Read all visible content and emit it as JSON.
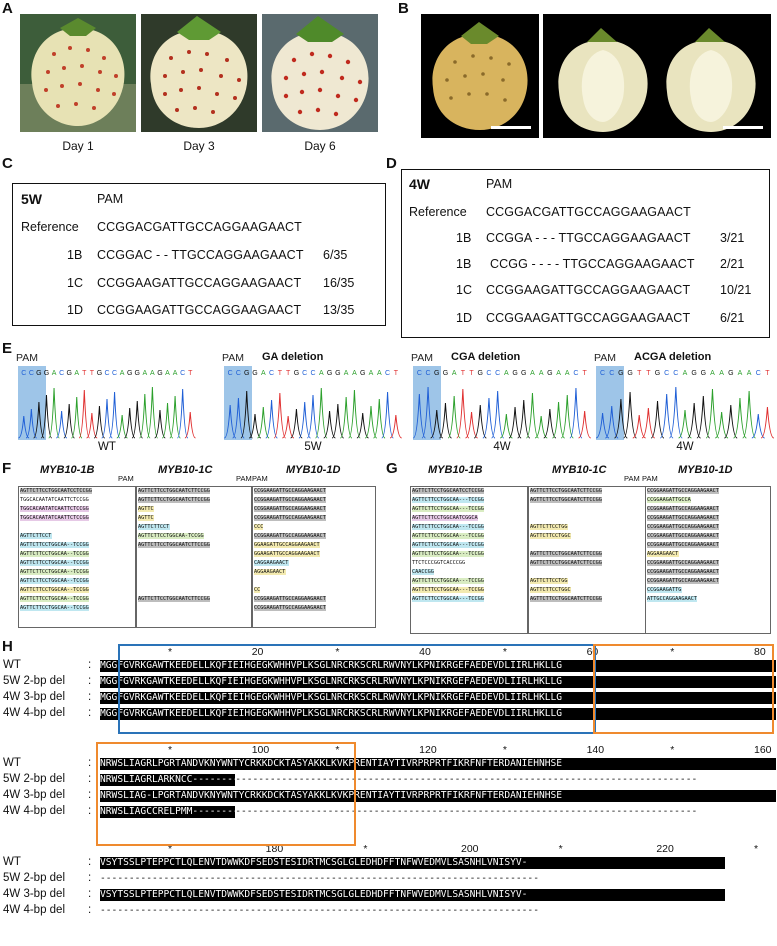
{
  "panels": {
    "A": {
      "label": "A",
      "captions": [
        "Day 1",
        "Day 3",
        "Day 6"
      ]
    },
    "B": {
      "label": "B"
    },
    "C": {
      "label": "C",
      "title": "5W",
      "pam": "PAM",
      "rows": [
        {
          "name": "Reference",
          "seq": "CCGGACGATTGCCAGGAAGAACT",
          "ratio": ""
        },
        {
          "name": "1B",
          "seq": "CCGGAC - - TTGCCAGGAAGAACT",
          "ratio": "6/35"
        },
        {
          "name": "1C",
          "seq": "CCGGAAGATTGCCAGGAAGAACT",
          "ratio": "16/35"
        },
        {
          "name": "1D",
          "seq": "CCGGAAGATTGCCAGGAAGAACT",
          "ratio": "13/35"
        }
      ]
    },
    "D": {
      "label": "D",
      "title": "4W",
      "pam": "PAM",
      "rows": [
        {
          "name": "Reference",
          "seq": "CCGGACGATTGCCAGGAAGAACT",
          "ratio": ""
        },
        {
          "name": "1B",
          "seq": "CCGGA - - - TTGCCAGGAAGAACT",
          "ratio": "3/21"
        },
        {
          "name": "1B",
          "seq": "CCGG - - - - TTGCCAGGAAGAACT",
          "ratio": "2/21"
        },
        {
          "name": "1C",
          "seq": "CCGGAAGATTGCCAGGAAGAACT",
          "ratio": "10/21"
        },
        {
          "name": "1D",
          "seq": "CCGGAAGATTGCCAGGAAGAACT",
          "ratio": "6/21"
        }
      ]
    },
    "E": {
      "label": "E",
      "traces": [
        {
          "pam": "PAM",
          "title": "",
          "seq": "CCGGACGATTGCCAGGAAGAACT",
          "caption": "WT"
        },
        {
          "pam": "PAM",
          "title": "GA deletion",
          "seq": "CCGGACTTGCCAGGAAGAACT",
          "caption": "5W"
        },
        {
          "pam": "PAM",
          "title": "CGA deletion",
          "seq": "CCGGATTGCCAGGAAGAACT",
          "caption": "4W"
        },
        {
          "pam": "PAM",
          "title": "ACGA deletion",
          "seq": "CCGGTTGCCAGGAAGAACT",
          "caption": "4W"
        }
      ]
    },
    "F": {
      "label": "F",
      "genes": [
        "MYB10-1B",
        "MYB10-1C",
        "MYB10-1D"
      ],
      "pam": "PAM",
      "cols": [
        {
          "lines": [
            {
              "t": "AGTTCTTCCTGGCAATCCTCCGG",
              "c": "#bdbdbd"
            },
            {
              "t": "TGGCACAATATCAATTCTCCGG",
              "c": "#ffffff"
            },
            {
              "t": "TGGCACAATATCAATTCTCCGG",
              "c": "#e6c9e6"
            },
            {
              "t": "TGGCACAATATCAATTCTCCGG",
              "c": "#e6c9e6"
            },
            {
              "t": "",
              "c": "#ffffff"
            },
            {
              "t": "AGTTCTTCCT",
              "c": "#bfe7f0"
            },
            {
              "t": "AGTTCTTCCTGGCAA--TCCGG",
              "c": "#bfe7f0"
            },
            {
              "t": "AGTTCTTCCTGGCAA--TCCGG",
              "c": "#d9ecc2"
            },
            {
              "t": "AGTTCTTCCTGGCAA--TCCGG",
              "c": "#bfe7f0"
            },
            {
              "t": "AGTTCTTCCTGGCAA--TCCGG",
              "c": "#d9ecc2"
            },
            {
              "t": "AGTTCTTCCTGGCAA--TCCGG",
              "c": "#bfe7f0"
            },
            {
              "t": "AGTTCTTCCTGGCAA--TCCGG",
              "c": "#f3eab0"
            },
            {
              "t": "AGTTCTTCCTGGCAA--TCCGG",
              "c": "#d9ecc2"
            },
            {
              "t": "AGTTCTTCCTGGCAA--TCCGG",
              "c": "#bfe7f0"
            }
          ]
        },
        {
          "lines": [
            {
              "t": "AGTTCTTCCTGGCAATCTTCCGG",
              "c": "#bdbdbd"
            },
            {
              "t": "AGTTCTTCCTGGCAATCTTCCGG",
              "c": "#bdbdbd"
            },
            {
              "t": "AGTTC",
              "c": "#f3eab0"
            },
            {
              "t": "AGTTC",
              "c": "#f3eab0"
            },
            {
              "t": "AGTTCTTCCT",
              "c": "#bfe7f0"
            },
            {
              "t": "AGTTCTTCCTGGCAA-TCCGG",
              "c": "#d9ecc2"
            },
            {
              "t": "AGTTCTTCCTGGCAATCTTCCGG",
              "c": "#bdbdbd"
            },
            {
              "t": "",
              "c": "#ffffff"
            },
            {
              "t": "",
              "c": "#ffffff"
            },
            {
              "t": "",
              "c": "#ffffff"
            },
            {
              "t": "",
              "c": "#ffffff"
            },
            {
              "t": "",
              "c": "#ffffff"
            },
            {
              "t": "AGTTCTTCCTGGCAATCTTCCGG",
              "c": "#bdbdbd"
            },
            {
              "t": "",
              "c": "#ffffff"
            }
          ]
        },
        {
          "lines": [
            {
              "t": "CCGGAAGATTGCCAGGAAGAACT",
              "c": "#bdbdbd"
            },
            {
              "t": "CCGGAAGATTGCCAGGAAGAACT",
              "c": "#bdbdbd"
            },
            {
              "t": "CCGGAAGATTGCCAGGAAGAACT",
              "c": "#bdbdbd"
            },
            {
              "t": "CCGGAAGATTGCCAGGAAGAACT",
              "c": "#bdbdbd"
            },
            {
              "t": "CCC",
              "c": "#f3eab0"
            },
            {
              "t": "CCGGAAGATTGCCAGGAAGAACT",
              "c": "#bdbdbd"
            },
            {
              "t": "GGAAGATTGCCAGGAAGAACT",
              "c": "#f3eab0"
            },
            {
              "t": "GGAAGATTGCCAGGAAGAACT",
              "c": "#f3eab0"
            },
            {
              "t": "CAGGAAGAACT",
              "c": "#bfe7f0"
            },
            {
              "t": "AGGAAGAACT",
              "c": "#f3eab0"
            },
            {
              "t": "",
              "c": "#ffffff"
            },
            {
              "t": "CC",
              "c": "#f3eab0"
            },
            {
              "t": "CCGGAAGATTGCCAGGAAGAACT",
              "c": "#bdbdbd"
            },
            {
              "t": "CCGGAAGATTGCCAGGAAGAACT",
              "c": "#bdbdbd"
            }
          ]
        }
      ]
    },
    "G": {
      "label": "G",
      "genes": [
        "MYB10-1B",
        "MYB10-1C",
        "MYB10-1D"
      ],
      "pam": "PAM",
      "cols": [
        {
          "lines": [
            {
              "t": "AGTTCTTCCTGGCAATCCTCCGG",
              "c": "#bdbdbd"
            },
            {
              "t": "AGTTCTTCCTGGCAA---TCCGG",
              "c": "#bfe7f0"
            },
            {
              "t": "AGTTCTTCCTGGCAA---TCCGG",
              "c": "#d9ecc2"
            },
            {
              "t": "AGTTCTTCCTGGCAATCGGCA",
              "c": "#e6c9e6"
            },
            {
              "t": "AGTTCTTCCTGGCAA---TCCGG",
              "c": "#bfe7f0"
            },
            {
              "t": "AGTTCTTCCTGGCAA---TCCGG",
              "c": "#d9ecc2"
            },
            {
              "t": "AGTTCTTCCTGGCAA---TCCGG",
              "c": "#bfe7f0"
            },
            {
              "t": "AGTTCTTCCTGGCAA---TCCGG",
              "c": "#d9ecc2"
            },
            {
              "t": "TTCTCCCGGTCACCCGG",
              "c": "#ffffff"
            },
            {
              "t": "CAACCGG",
              "c": "#bfe7f0"
            },
            {
              "t": "AGTTCTTCCTGGCAA---TCCGG",
              "c": "#d9ecc2"
            },
            {
              "t": "AGTTCTTCCTGGCAA---TCCGG",
              "c": "#f3eab0"
            },
            {
              "t": "AGTTCTTCCTGGCAA---TCCGG",
              "c": "#bfe7f0"
            }
          ]
        },
        {
          "lines": [
            {
              "t": "AGTTCTTCCTGGCAATCTTCCGG",
              "c": "#bdbdbd"
            },
            {
              "t": "AGTTCTTCCTGGCAATCTTCCGG",
              "c": "#bdbdbd"
            },
            {
              "t": "",
              "c": "#ffffff"
            },
            {
              "t": "",
              "c": "#ffffff"
            },
            {
              "t": "AGTTCTTCCTGG",
              "c": "#f3eab0"
            },
            {
              "t": "AGTTCTTCCTGGC",
              "c": "#f3eab0"
            },
            {
              "t": "",
              "c": "#ffffff"
            },
            {
              "t": "AGTTCTTCCTGGCAATCTTCCGG",
              "c": "#bdbdbd"
            },
            {
              "t": "AGTTCTTCCTGGCAATCTTCCGG",
              "c": "#bdbdbd"
            },
            {
              "t": "",
              "c": "#ffffff"
            },
            {
              "t": "AGTTCTTCCTGG",
              "c": "#f3eab0"
            },
            {
              "t": "AGTTCTTCCTGGC",
              "c": "#f3eab0"
            },
            {
              "t": "AGTTCTTCCTGGCAATCTTCCGG",
              "c": "#bdbdbd"
            }
          ]
        },
        {
          "lines": [
            {
              "t": "CCGGAAGATTGCCAGGAAGAACT",
              "c": "#bdbdbd"
            },
            {
              "t": "CCGGAAGATTGCCA",
              "c": "#d9ecc2"
            },
            {
              "t": "CCGGAAGATTGCCAGGAAGAACT",
              "c": "#bdbdbd"
            },
            {
              "t": "CCGGAAGATTGCCAGGAAGAACT",
              "c": "#bdbdbd"
            },
            {
              "t": "CCGGAAGATTGCCAGGAAGAACT",
              "c": "#bdbdbd"
            },
            {
              "t": "CCGGAAGATTGCCAGGAAGAACT",
              "c": "#bdbdbd"
            },
            {
              "t": "CCGGAAGATTGCCAGGAAGAACT",
              "c": "#bdbdbd"
            },
            {
              "t": "AGGAAGAACT",
              "c": "#f3eab0"
            },
            {
              "t": "CCGGAAGATTGCCAGGAAGAACT",
              "c": "#bdbdbd"
            },
            {
              "t": "CCGGAAGATTGCCAGGAAGAACT",
              "c": "#bdbdbd"
            },
            {
              "t": "CCGGAAGATTGCCAGGAAGAACT",
              "c": "#bdbdbd"
            },
            {
              "t": "CCGGAAGATTG",
              "c": "#bfe7f0"
            },
            {
              "t": "ATTGCCAGGAAGAACT",
              "c": "#bfe7f0"
            }
          ]
        }
      ]
    },
    "H": {
      "label": "H",
      "blocks": [
        {
          "ruler": [
            "*",
            "20",
            "*",
            "40",
            "*",
            "60",
            "*",
            "80"
          ],
          "rows": [
            {
              "name": "WT",
              "seq": "MGGFGVRKGAWTKEEDELLKQFIEIHGEGKWHHVPLKSGLNRCRKSCRLRWVNYLKPNIKRGEFAEDEVDLIIRLHKLLG"
            },
            {
              "name": "5W 2-bp del",
              "seq": "MGGFGVRKGAWTKEEDELLKQFIEIHGEGKWHHVPLKSGLNRCRKSCRLRWVNYLKPNIKRGEFAEDEVDLIIRLHKLLG"
            },
            {
              "name": "4W 3-bp del",
              "seq": "MGGFGVRKGAWTKEEDELLKQFIEIHGEGKWHHVPLKSGLNRCRKSCRLRWVNYLKPNIKRGEFAEDEVDLIIRLHKLLG"
            },
            {
              "name": "4W 4-bp del",
              "seq": "MGGFGVRKGAWTKEEDELLKQFIEIHGEGKWHHVPLKSGLNRCRKSCRLRWVNYLKPNIKRGEFAEDEVDLIIRLHKLLG"
            }
          ]
        },
        {
          "ruler": [
            "*",
            "100",
            "*",
            "120",
            "*",
            "140",
            "*",
            "160"
          ],
          "rows": [
            {
              "name": "WT",
              "seq": "NRWSLIAGRLPGRTANDVKNYWNTYCRKKDCKTASYAKKLKVKPRENTIAYTIVRPRPRTFIKRFNFTERDANIEHNHSE"
            },
            {
              "name": "5W 2-bp del",
              "seq": "NRWSLIAGRLARKNCC-------------------------------------------------------------------"
            },
            {
              "name": "4W 3-bp del",
              "seq": "NRWSLIAG-LPGRTANDVKNYWNTYCRKKDCKTASYAKKLKVKPRENTIAYTIVRPRPRTFIKRFNFTERDANIEHNHSE"
            },
            {
              "name": "4W 4-bp del",
              "seq": "NRWSLIAGCCRELPMM----------------------------------------------------------------"
            }
          ]
        },
        {
          "ruler": [
            "*",
            "180",
            "*",
            "200",
            "*",
            "220",
            "*"
          ],
          "rows": [
            {
              "name": "WT",
              "seq": "VSYTSSLPTEPPCTLQLENVTDWWKDFSEDSTESIDRTMCSGLGLEDHDFFTNFWVEDMVLSASNHLVNISYV-"
            },
            {
              "name": "5W 2-bp del",
              "seq": "----------------------------------------------------------------------------"
            },
            {
              "name": "4W 3-bp del",
              "seq": "VSYTSSLPTEPPCTLQLENVTDWWKDFSEDSTESIDRTMCSGLGLEDHDFFTNFWVEDMVLSASNHLVNISYV-"
            },
            {
              "name": "4W 4-bp del",
              "seq": "----------------------------------------------------------------------------"
            }
          ]
        }
      ],
      "colors": {
        "domain1": "#2a73b8",
        "domain2": "#ef8a2e"
      }
    }
  },
  "colors": {
    "pam_highlight": "#9ec5e8",
    "trace_A": "#2ca02c",
    "trace_C": "#1f5fd6",
    "trace_G": "#111111",
    "trace_T": "#e03030"
  }
}
